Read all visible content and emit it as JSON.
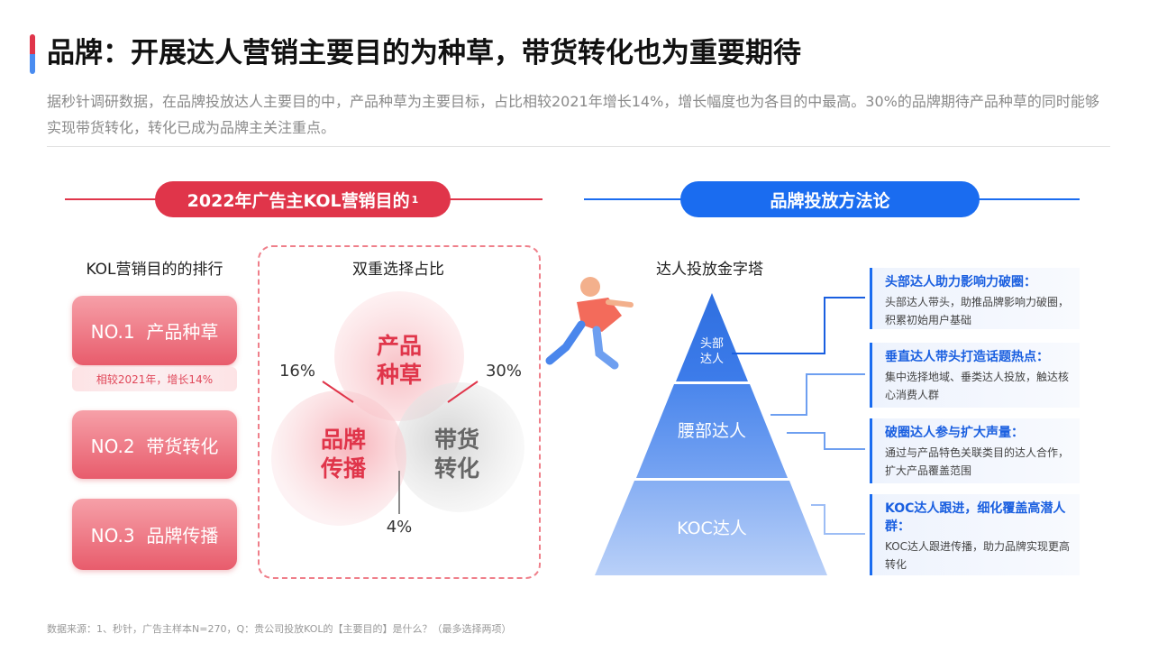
{
  "title": "品牌：开展达人营销主要目的为种草，带货转化也为重要期待",
  "subtitle": "据秒针调研数据，在品牌投放达人主要目的中，产品种草为主要目标，占比相较2021年增长14%，增长幅度也为各目的中最高。30%的品牌期待产品种草的同时能够实现带货转化，转化已成为品牌主关注重点。",
  "left_section": {
    "header": "2022年广告主KOL营销目的",
    "header_note": "1",
    "ranking": {
      "heading": "KOL营销目的的排行",
      "items": [
        "NO.1  产品种草",
        "NO.2  带货转化",
        "NO.3  品牌传播"
      ],
      "note": "相较2021年，增长14%"
    },
    "venn": {
      "heading": "双重选择占比",
      "circles": [
        {
          "lines": [
            "产品",
            "种草"
          ]
        },
        {
          "lines": [
            "品牌",
            "传播"
          ]
        },
        {
          "lines": [
            "带货",
            "转化"
          ]
        }
      ],
      "overlaps": [
        "16%",
        "30%",
        "4%"
      ]
    }
  },
  "right_section": {
    "header": "品牌投放方法论",
    "pyramid": {
      "heading": "达人投放金字塔",
      "levels": [
        {
          "lines": [
            "头部",
            "达人"
          ]
        },
        {
          "lines": [
            "腰部达人"
          ]
        },
        {
          "lines": [
            "KOC达人"
          ]
        }
      ]
    },
    "cards": [
      {
        "title": "头部达人助力影响力破圈：",
        "body": "头部达人带头，助推品牌影响力破圈，积累初始用户基础"
      },
      {
        "title": "垂直达人带头打造话题热点：",
        "body": "集中选择地域、垂类达人投放，触达核心消费人群"
      },
      {
        "title": "破圈达人参与扩大声量：",
        "body": "通过与产品特色关联类目的达人合作，扩大产品覆盖范围"
      },
      {
        "title": "KOC达人跟进，细化覆盖高潜人群：",
        "body": "KOC达人跟进传播，助力品牌实现更高转化"
      }
    ]
  },
  "footnote": "数据来源：1、秒针，广告主样本N=270，Q：贵公司投放KOL的【主要目的】是什么？（最多选择两项）"
}
